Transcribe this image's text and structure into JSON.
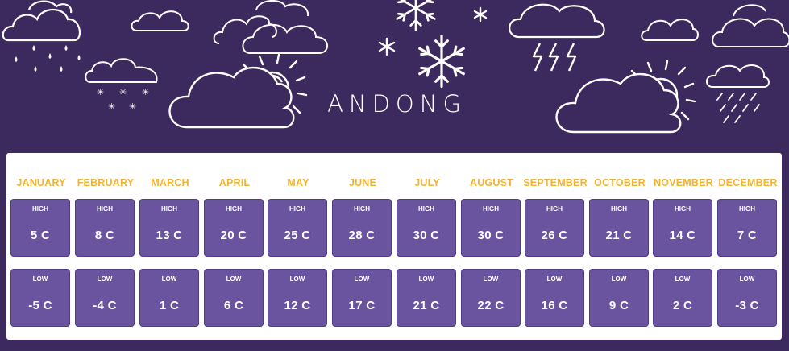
{
  "city": "ANDONG",
  "months": [
    {
      "name": "JANUARY",
      "high_label": "HIGH",
      "high": "5 C",
      "low_label": "LOW",
      "low": "-5 C"
    },
    {
      "name": "FEBRUARY",
      "high_label": "HIGH",
      "high": "8 C",
      "low_label": "LOW",
      "low": "-4 C"
    },
    {
      "name": "MARCH",
      "high_label": "HIGH",
      "high": "13 C",
      "low_label": "LOW",
      "low": "1 C"
    },
    {
      "name": "APRIL",
      "high_label": "HIGH",
      "high": "20 C",
      "low_label": "LOW",
      "low": "6 C"
    },
    {
      "name": "MAY",
      "high_label": "HIGH",
      "high": "25 C",
      "low_label": "LOW",
      "low": "12 C"
    },
    {
      "name": "JUNE",
      "high_label": "HIGH",
      "high": "28 C",
      "low_label": "LOW",
      "low": "17 C"
    },
    {
      "name": "JULY",
      "high_label": "HIGH",
      "high": "30 C",
      "low_label": "LOW",
      "low": "21 C"
    },
    {
      "name": "AUGUST",
      "high_label": "HIGH",
      "high": "30 C",
      "low_label": "LOW",
      "low": "22 C"
    },
    {
      "name": "SEPTEMBER",
      "high_label": "HIGH",
      "high": "26 C",
      "low_label": "LOW",
      "low": "16 C"
    },
    {
      "name": "OCTOBER",
      "high_label": "HIGH",
      "high": "21 C",
      "low_label": "LOW",
      "low": "9 C"
    },
    {
      "name": "NOVEMBER",
      "high_label": "HIGH",
      "high": "14 C",
      "low_label": "LOW",
      "low": "2 C"
    },
    {
      "name": "DECEMBER",
      "high_label": "HIGH",
      "high": "7 C",
      "low_label": "LOW",
      "low": "-3 C"
    }
  ],
  "colors": {
    "background": "#3c2a5e",
    "card": "#ffffff",
    "month_text": "#f2b330",
    "box": "#6a54a0"
  },
  "icons": [
    "cloud-icon",
    "rain-icon",
    "snow-icon",
    "snowflake-icon",
    "sun-icon",
    "lightning-icon",
    "sun-cloud-icon"
  ]
}
